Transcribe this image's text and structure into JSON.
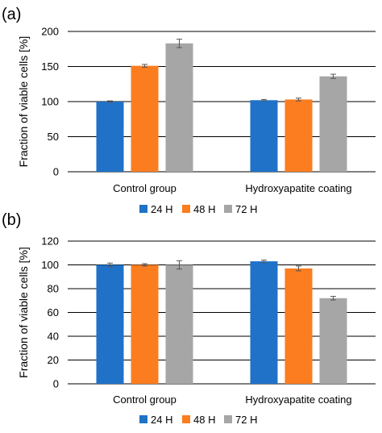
{
  "chart_data": [
    {
      "type": "bar",
      "panel_label": "(a)",
      "categories": [
        "Control group",
        "Hydroxyapatite coating"
      ],
      "series": [
        {
          "name": "24 H",
          "values": [
            100,
            102
          ],
          "errors": [
            1,
            1
          ],
          "color": "#1f72c8"
        },
        {
          "name": "48 H",
          "values": [
            151,
            103
          ],
          "errors": [
            2,
            2
          ],
          "color": "#fb7d1f"
        },
        {
          "name": "72 H",
          "values": [
            183,
            136
          ],
          "errors": [
            6,
            3
          ],
          "color": "#a6a6a6"
        }
      ],
      "ylabel": "Fraction of viable cells [%]",
      "yticks": [
        "0",
        "50",
        "100",
        "150",
        "200"
      ],
      "ylim": [
        0,
        200
      ],
      "grid": true,
      "legend": "bottom"
    },
    {
      "type": "bar",
      "panel_label": "(b)",
      "categories": [
        "Control group",
        "Hydroxyapatite coating"
      ],
      "series": [
        {
          "name": "24 H",
          "values": [
            100,
            103
          ],
          "errors": [
            1.5,
            1
          ],
          "color": "#1f72c8"
        },
        {
          "name": "48 H",
          "values": [
            100,
            97
          ],
          "errors": [
            1,
            2
          ],
          "color": "#fb7d1f"
        },
        {
          "name": "72 H",
          "values": [
            100,
            72
          ],
          "errors": [
            3.5,
            1.5
          ],
          "color": "#a6a6a6"
        }
      ],
      "ylabel": "Fraction of viable cells [%]",
      "yticks": [
        "0",
        "20",
        "40",
        "60",
        "80",
        "100",
        "120"
      ],
      "ylim": [
        0,
        120
      ],
      "grid": true,
      "legend": "bottom"
    }
  ]
}
